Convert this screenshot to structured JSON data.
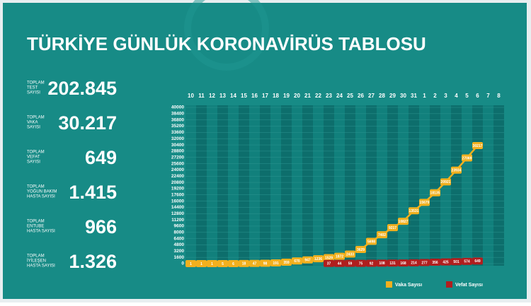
{
  "title": "TÜRKİYE GÜNLÜK KORONAVİRÜS TABLOSU",
  "stats": [
    {
      "label": [
        "TOPLAM",
        "TEST",
        "SAYISI"
      ],
      "value": "202.845"
    },
    {
      "label": [
        "TOPLAM",
        "VAKA",
        "SAYISI"
      ],
      "value": "30.217"
    },
    {
      "label": [
        "TOPLAM",
        "VEFAT",
        "SAYISI"
      ],
      "value": "649"
    },
    {
      "label": [
        "TOPLAM",
        "YOĞUN BAKIM",
        "HASTA SAYISI"
      ],
      "value": "1.415"
    },
    {
      "label": [
        "TOPLAM",
        "ENTUBE",
        "HASTA SAYISI"
      ],
      "value": "966"
    },
    {
      "label": [
        "TOPLAM",
        "İYİLEŞEN",
        "HASTA SAYISI"
      ],
      "value": "1.326"
    }
  ],
  "chart_data": {
    "type": "line",
    "categories": [
      "10",
      "11",
      "12",
      "13",
      "14",
      "15",
      "16",
      "17",
      "18",
      "19",
      "20",
      "21",
      "22",
      "23",
      "24",
      "25",
      "26",
      "27",
      "28",
      "29",
      "30",
      "31",
      "1",
      "2",
      "3",
      "4",
      "5",
      "6",
      "7",
      "8"
    ],
    "series": [
      {
        "name": "Vaka Sayısı",
        "color": "#f2b01e",
        "values": [
          1,
          1,
          1,
          5,
          6,
          18,
          47,
          98,
          191,
          359,
          670,
          947,
          1236,
          1529,
          1872,
          2433,
          3629,
          5698,
          7402,
          9217,
          10827,
          13531,
          15679,
          18135,
          20921,
          23934,
          27069,
          30217,
          null,
          null
        ]
      },
      {
        "name": "Vefat Sayısı",
        "color": "#b01e1e",
        "values": [
          null,
          null,
          null,
          null,
          null,
          null,
          null,
          null,
          null,
          null,
          null,
          null,
          null,
          37,
          44,
          59,
          75,
          92,
          108,
          131,
          168,
          214,
          277,
          356,
          425,
          501,
          574,
          649,
          null,
          null
        ]
      }
    ],
    "ylim": [
      0,
      40000
    ],
    "yticks": [
      0,
      1600,
      3200,
      4800,
      6400,
      8000,
      9600,
      11200,
      12800,
      14400,
      16000,
      17600,
      19200,
      20800,
      22400,
      24000,
      25600,
      27200,
      28800,
      30400,
      32000,
      33600,
      35200,
      36800,
      38400,
      40000
    ],
    "grid": true,
    "legend": "bottom-right"
  }
}
